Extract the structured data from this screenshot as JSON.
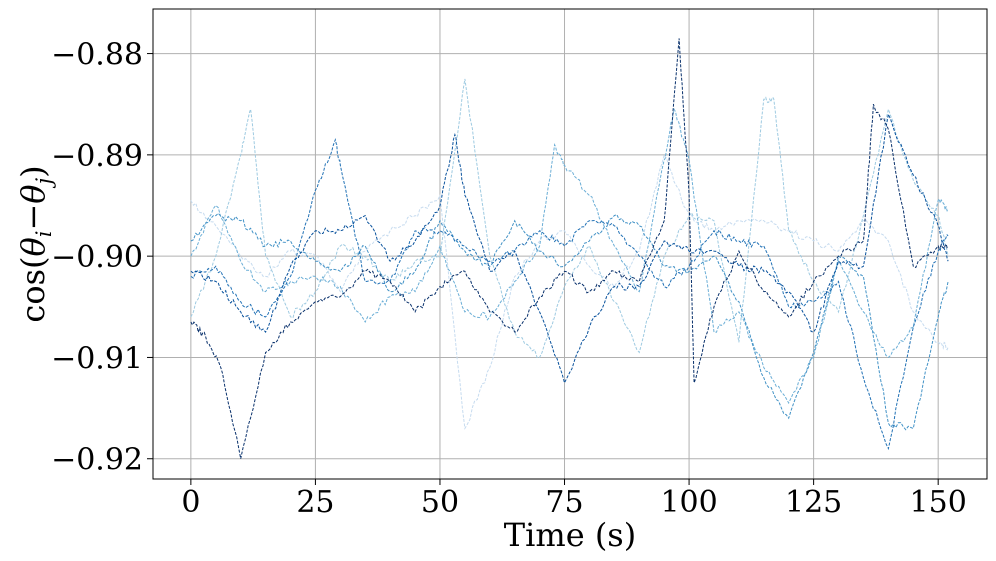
{
  "chart_data": {
    "type": "line",
    "xlabel": "Time (s)",
    "ylabel": "cos(θ_i − θ_j)",
    "ylabel_parts": {
      "prefix": "cos(",
      "theta1": "θ",
      "sub1": "i",
      "minus": "−",
      "theta2": "θ",
      "sub2": "j",
      "suffix": ")"
    },
    "xlim": [
      -7.6,
      159.8
    ],
    "ylim": [
      -0.922,
      -0.8756
    ],
    "xticks": [
      0,
      25,
      50,
      75,
      100,
      125,
      150
    ],
    "xtick_labels": [
      "0",
      "25",
      "50",
      "75",
      "100",
      "125",
      "150"
    ],
    "yticks": [
      -0.88,
      -0.89,
      -0.9,
      -0.91,
      -0.92
    ],
    "ytick_labels": [
      "−0.88",
      "−0.89",
      "−0.90",
      "−0.91",
      "−0.92"
    ],
    "grid": true,
    "legend": "none",
    "line_style": "dashed",
    "series": [
      {
        "color": "#c6dbef",
        "x": [
          0,
          5,
          10,
          15,
          20,
          25,
          30,
          35,
          40,
          45,
          50,
          55,
          60,
          65,
          70,
          75,
          80,
          85,
          90,
          95,
          100,
          105,
          110,
          115,
          120,
          125,
          130,
          135,
          140,
          145,
          150,
          152
        ],
        "y": [
          -0.8945,
          -0.897,
          -0.9,
          -0.902,
          -0.8995,
          -0.9,
          -0.9035,
          -0.8995,
          -0.8975,
          -0.896,
          -0.894,
          -0.917,
          -0.911,
          -0.902,
          -0.8985,
          -0.8975,
          -0.901,
          -0.903,
          -0.8995,
          -0.89,
          -0.896,
          -0.8975,
          -0.8965,
          -0.8965,
          -0.8975,
          -0.8985,
          -0.8995,
          -0.8965,
          -0.8985,
          -0.9055,
          -0.9085,
          -0.909
        ]
      },
      {
        "color": "#9ecae1",
        "x": [
          0,
          5,
          10,
          12,
          15,
          20,
          25,
          30,
          35,
          40,
          45,
          50,
          55,
          60,
          65,
          70,
          75,
          80,
          85,
          90,
          95,
          100,
          105,
          110,
          115,
          117,
          120,
          125,
          130,
          135,
          140,
          145,
          150,
          152
        ],
        "y": [
          -0.906,
          -0.9,
          -0.89,
          -0.8855,
          -0.9,
          -0.906,
          -0.9035,
          -0.899,
          -0.9,
          -0.9025,
          -0.9005,
          -0.9,
          -0.8825,
          -0.9,
          -0.9075,
          -0.91,
          -0.903,
          -0.899,
          -0.9045,
          -0.9095,
          -0.9,
          -0.896,
          -0.8965,
          -0.9085,
          -0.8845,
          -0.8845,
          -0.8975,
          -0.9025,
          -0.9055,
          -0.896,
          -0.8855,
          -0.8925,
          -0.896,
          -0.9
        ]
      },
      {
        "color": "#6baed6",
        "x": [
          0,
          5,
          10,
          15,
          20,
          25,
          30,
          35,
          40,
          45,
          50,
          55,
          60,
          65,
          70,
          73,
          75,
          80,
          85,
          90,
          95,
          97,
          100,
          105,
          110,
          115,
          120,
          125,
          130,
          135,
          140,
          145,
          150,
          152
        ],
        "y": [
          -0.9,
          -0.895,
          -0.9005,
          -0.9035,
          -0.9025,
          -0.902,
          -0.903,
          -0.9065,
          -0.904,
          -0.9035,
          -0.899,
          -0.9055,
          -0.906,
          -0.9025,
          -0.899,
          -0.889,
          -0.891,
          -0.894,
          -0.899,
          -0.9035,
          -0.8905,
          -0.8855,
          -0.8905,
          -0.9075,
          -0.9055,
          -0.911,
          -0.9145,
          -0.91,
          -0.9005,
          -0.9055,
          -0.91,
          -0.907,
          -0.8945,
          -0.8955
        ]
      },
      {
        "color": "#4292c6",
        "x": [
          0,
          5,
          10,
          15,
          20,
          25,
          30,
          35,
          40,
          45,
          50,
          55,
          60,
          65,
          70,
          75,
          80,
          85,
          90,
          95,
          100,
          105,
          110,
          115,
          120,
          125,
          130,
          135,
          140,
          145,
          150,
          152
        ],
        "y": [
          -0.8985,
          -0.896,
          -0.8965,
          -0.899,
          -0.8985,
          -0.9005,
          -0.9015,
          -0.899,
          -0.9035,
          -0.9015,
          -0.8965,
          -0.8995,
          -0.901,
          -0.8965,
          -0.8995,
          -0.901,
          -0.8985,
          -0.896,
          -0.897,
          -0.901,
          -0.9015,
          -0.9,
          -0.9045,
          -0.912,
          -0.916,
          -0.9095,
          -0.9,
          -0.902,
          -0.9165,
          -0.917,
          -0.906,
          -0.9025
        ]
      },
      {
        "color": "#2171b5",
        "x": [
          0,
          5,
          10,
          15,
          20,
          25,
          29,
          30,
          35,
          40,
          45,
          50,
          55,
          60,
          65,
          70,
          75,
          80,
          85,
          90,
          95,
          100,
          105,
          110,
          115,
          120,
          125,
          130,
          135,
          140,
          145,
          150,
          152
        ],
        "y": [
          -0.902,
          -0.901,
          -0.9045,
          -0.906,
          -0.902,
          -0.8935,
          -0.8885,
          -0.891,
          -0.9025,
          -0.9025,
          -0.8975,
          -0.8975,
          -0.899,
          -0.9005,
          -0.8995,
          -0.8975,
          -0.899,
          -0.8965,
          -0.897,
          -0.9,
          -0.903,
          -0.901,
          -0.8975,
          -0.8985,
          -0.899,
          -0.905,
          -0.9045,
          -0.9025,
          -0.912,
          -0.919,
          -0.907,
          -0.8995,
          -0.898
        ]
      },
      {
        "color": "#08519c",
        "x": [
          0,
          5,
          10,
          15,
          20,
          25,
          30,
          35,
          40,
          45,
          50,
          53,
          55,
          60,
          65,
          70,
          75,
          80,
          85,
          90,
          95,
          100,
          105,
          110,
          115,
          120,
          125,
          130,
          135,
          140,
          145,
          150,
          152
        ],
        "y": [
          -0.9015,
          -0.9025,
          -0.9055,
          -0.9075,
          -0.901,
          -0.8975,
          -0.8975,
          -0.896,
          -0.9005,
          -0.8985,
          -0.895,
          -0.888,
          -0.894,
          -0.9015,
          -0.8995,
          -0.9055,
          -0.9125,
          -0.907,
          -0.903,
          -0.903,
          -0.8985,
          -0.8995,
          -0.8995,
          -0.901,
          -0.9015,
          -0.9035,
          -0.9075,
          -0.9005,
          -0.901,
          -0.886,
          -0.892,
          -0.897,
          -0.9005
        ]
      },
      {
        "color": "#08306b",
        "x": [
          0,
          3,
          6,
          10,
          15,
          20,
          25,
          30,
          35,
          40,
          45,
          50,
          55,
          60,
          65,
          70,
          75,
          80,
          85,
          90,
          95,
          98,
          100,
          101,
          105,
          110,
          115,
          120,
          125,
          130,
          135,
          137,
          140,
          145,
          150,
          152
        ],
        "y": [
          -0.9065,
          -0.908,
          -0.911,
          -0.92,
          -0.9095,
          -0.9065,
          -0.9045,
          -0.904,
          -0.9015,
          -0.9025,
          -0.9055,
          -0.903,
          -0.9015,
          -0.9055,
          -0.9075,
          -0.904,
          -0.9015,
          -0.9035,
          -0.9015,
          -0.9025,
          -0.8965,
          -0.8785,
          -0.894,
          -0.9125,
          -0.905,
          -0.8995,
          -0.9035,
          -0.906,
          -0.9025,
          -0.9,
          -0.8985,
          -0.885,
          -0.8875,
          -0.901,
          -0.899,
          -0.899
        ]
      }
    ]
  }
}
